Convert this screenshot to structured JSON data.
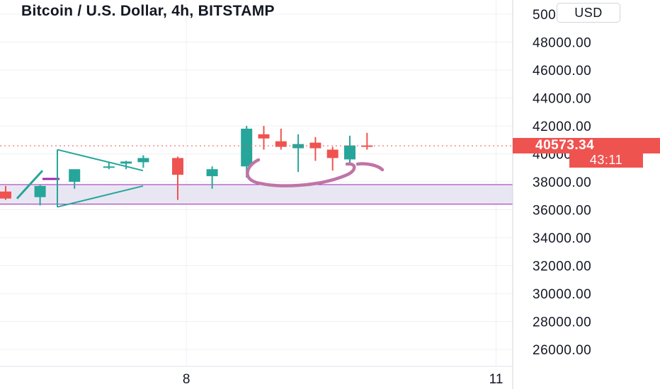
{
  "title": "Bitcoin / U.S. Dollar, 4h, BITSTAMP",
  "currency_button": "USD",
  "last_price_label": "40573.34",
  "countdown_label": "43:11",
  "colors": {
    "up": "#26a69a",
    "down": "#ef5350",
    "zone_fill": "#e9e6f3",
    "zone_border": "#9c27b0",
    "pattern": "#26a69a",
    "scribble": "#c074a6",
    "grid": "#eef0f3"
  },
  "chart_data": {
    "type": "candlestick",
    "ylim": [
      24500,
      51000
    ],
    "y_ticks": [
      50000,
      48000,
      46000,
      44000,
      42000,
      40000,
      38000,
      36000,
      34000,
      32000,
      30000,
      28000,
      26000
    ],
    "y_tick_labels": [
      "50000.00",
      "48000.00",
      "46000.00",
      "44000.00",
      "42000.00",
      "40000.00",
      "38000.00",
      "36000.00",
      "34000.00",
      "32000.00",
      "30000.00",
      "28000.00",
      "26000.00"
    ],
    "x_labels": [
      {
        "label": "8",
        "index": 10.5
      },
      {
        "label": "11",
        "index": 28.5
      }
    ],
    "candles": [
      {
        "i": 0,
        "open": 37300,
        "high": 37700,
        "low": 36700,
        "close": 36800
      },
      {
        "i": 2,
        "open": 36900,
        "high": 37800,
        "low": 36300,
        "close": 37700
      },
      {
        "i": 4,
        "open": 38000,
        "high": 38700,
        "low": 37500,
        "close": 38900
      },
      {
        "i": 6,
        "open": 39100,
        "high": 39400,
        "low": 38900,
        "close": 39100
      },
      {
        "i": 7,
        "open": 39300,
        "high": 39500,
        "low": 38900,
        "close": 39450
      },
      {
        "i": 8,
        "open": 39400,
        "high": 39900,
        "low": 39000,
        "close": 39700
      },
      {
        "i": 10,
        "open": 39700,
        "high": 39800,
        "low": 36700,
        "close": 38500
      },
      {
        "i": 12,
        "open": 38400,
        "high": 39100,
        "low": 37500,
        "close": 38900
      },
      {
        "i": 14,
        "open": 39100,
        "high": 42000,
        "low": 38300,
        "close": 41800
      },
      {
        "i": 15,
        "open": 41400,
        "high": 42000,
        "low": 40300,
        "close": 41100
      },
      {
        "i": 16,
        "open": 40900,
        "high": 41800,
        "low": 40300,
        "close": 40500
      },
      {
        "i": 17,
        "open": 40400,
        "high": 41400,
        "low": 38700,
        "close": 40700
      },
      {
        "i": 18,
        "open": 40800,
        "high": 41200,
        "low": 39500,
        "close": 40400
      },
      {
        "i": 19,
        "open": 40300,
        "high": 40500,
        "low": 38800,
        "close": 39700
      },
      {
        "i": 20,
        "open": 39600,
        "high": 41300,
        "low": 39300,
        "close": 40600
      },
      {
        "i": 21,
        "open": 40600,
        "high": 41500,
        "low": 40300,
        "close": 40570
      }
    ],
    "last_price": 40573.34,
    "support_zone": {
      "top": 37800,
      "bottom": 36400
    }
  }
}
